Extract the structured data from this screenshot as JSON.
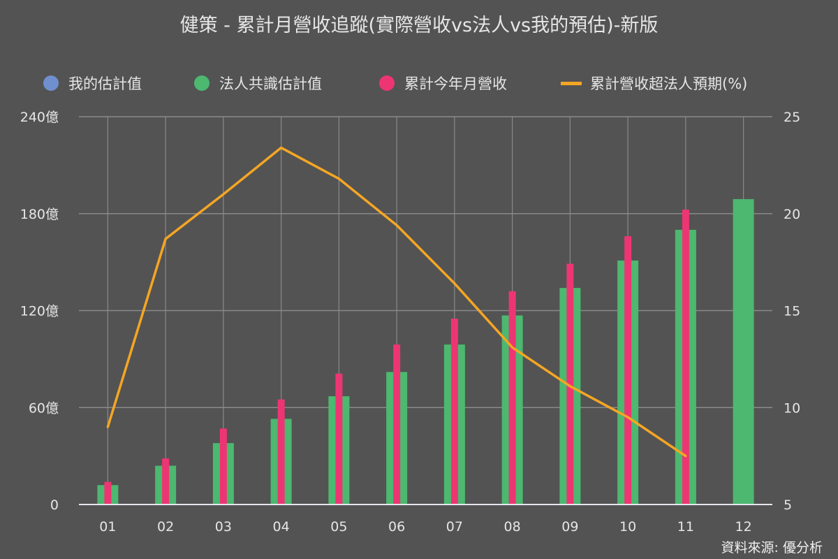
{
  "title": "健策 - 累計月營收追蹤(實際營收vs法人vs我的預估)-新版",
  "legend": [
    {
      "label": "我的估計值",
      "color": "#6f8fcf",
      "shape": "dot"
    },
    {
      "label": "法人共識估計值",
      "color": "#4cb870",
      "shape": "dot"
    },
    {
      "label": "累計今年月營收",
      "color": "#ee3573",
      "shape": "dot"
    },
    {
      "label": "累計營收超法人預期(%)",
      "color": "#f5a623",
      "shape": "line"
    }
  ],
  "source": "資料來源: 優分析",
  "chart_data": {
    "type": "bar",
    "title": "健策 - 累計月營收追蹤(實際營收vs法人vs我的預估)-新版",
    "categories": [
      "01",
      "02",
      "03",
      "04",
      "05",
      "06",
      "07",
      "08",
      "09",
      "10",
      "11",
      "12"
    ],
    "xlabel": "",
    "ylabel": "",
    "ylim": [
      0,
      240
    ],
    "y_ticks": [
      "0",
      "60億",
      "120億",
      "180億",
      "240億"
    ],
    "y2lim": [
      5,
      25
    ],
    "y2_ticks": [
      "5",
      "10",
      "15",
      "20",
      "25"
    ],
    "grid": true,
    "legend_position": "top",
    "series": [
      {
        "name": "我的估計值",
        "type": "bar",
        "axis": "left",
        "color": "#6f8fcf",
        "values": [
          null,
          null,
          null,
          null,
          null,
          null,
          null,
          null,
          null,
          null,
          null,
          null
        ]
      },
      {
        "name": "法人共識估計值",
        "type": "bar",
        "axis": "left",
        "color": "#4cb870",
        "values": [
          12,
          24,
          38,
          53,
          67,
          82,
          99,
          117,
          134,
          151,
          170,
          189
        ]
      },
      {
        "name": "累計今年月營收",
        "type": "bar",
        "axis": "left",
        "color": "#ee3573",
        "values": [
          14,
          28.5,
          47,
          65,
          81,
          99,
          115,
          132,
          149,
          166,
          182.5,
          null
        ]
      },
      {
        "name": "累計營收超法人預期(%)",
        "type": "line",
        "axis": "right",
        "color": "#f5a623",
        "values": [
          9.0,
          18.7,
          21.0,
          23.4,
          21.8,
          19.4,
          16.4,
          13.1,
          11.1,
          9.5,
          7.5,
          null
        ]
      }
    ]
  }
}
